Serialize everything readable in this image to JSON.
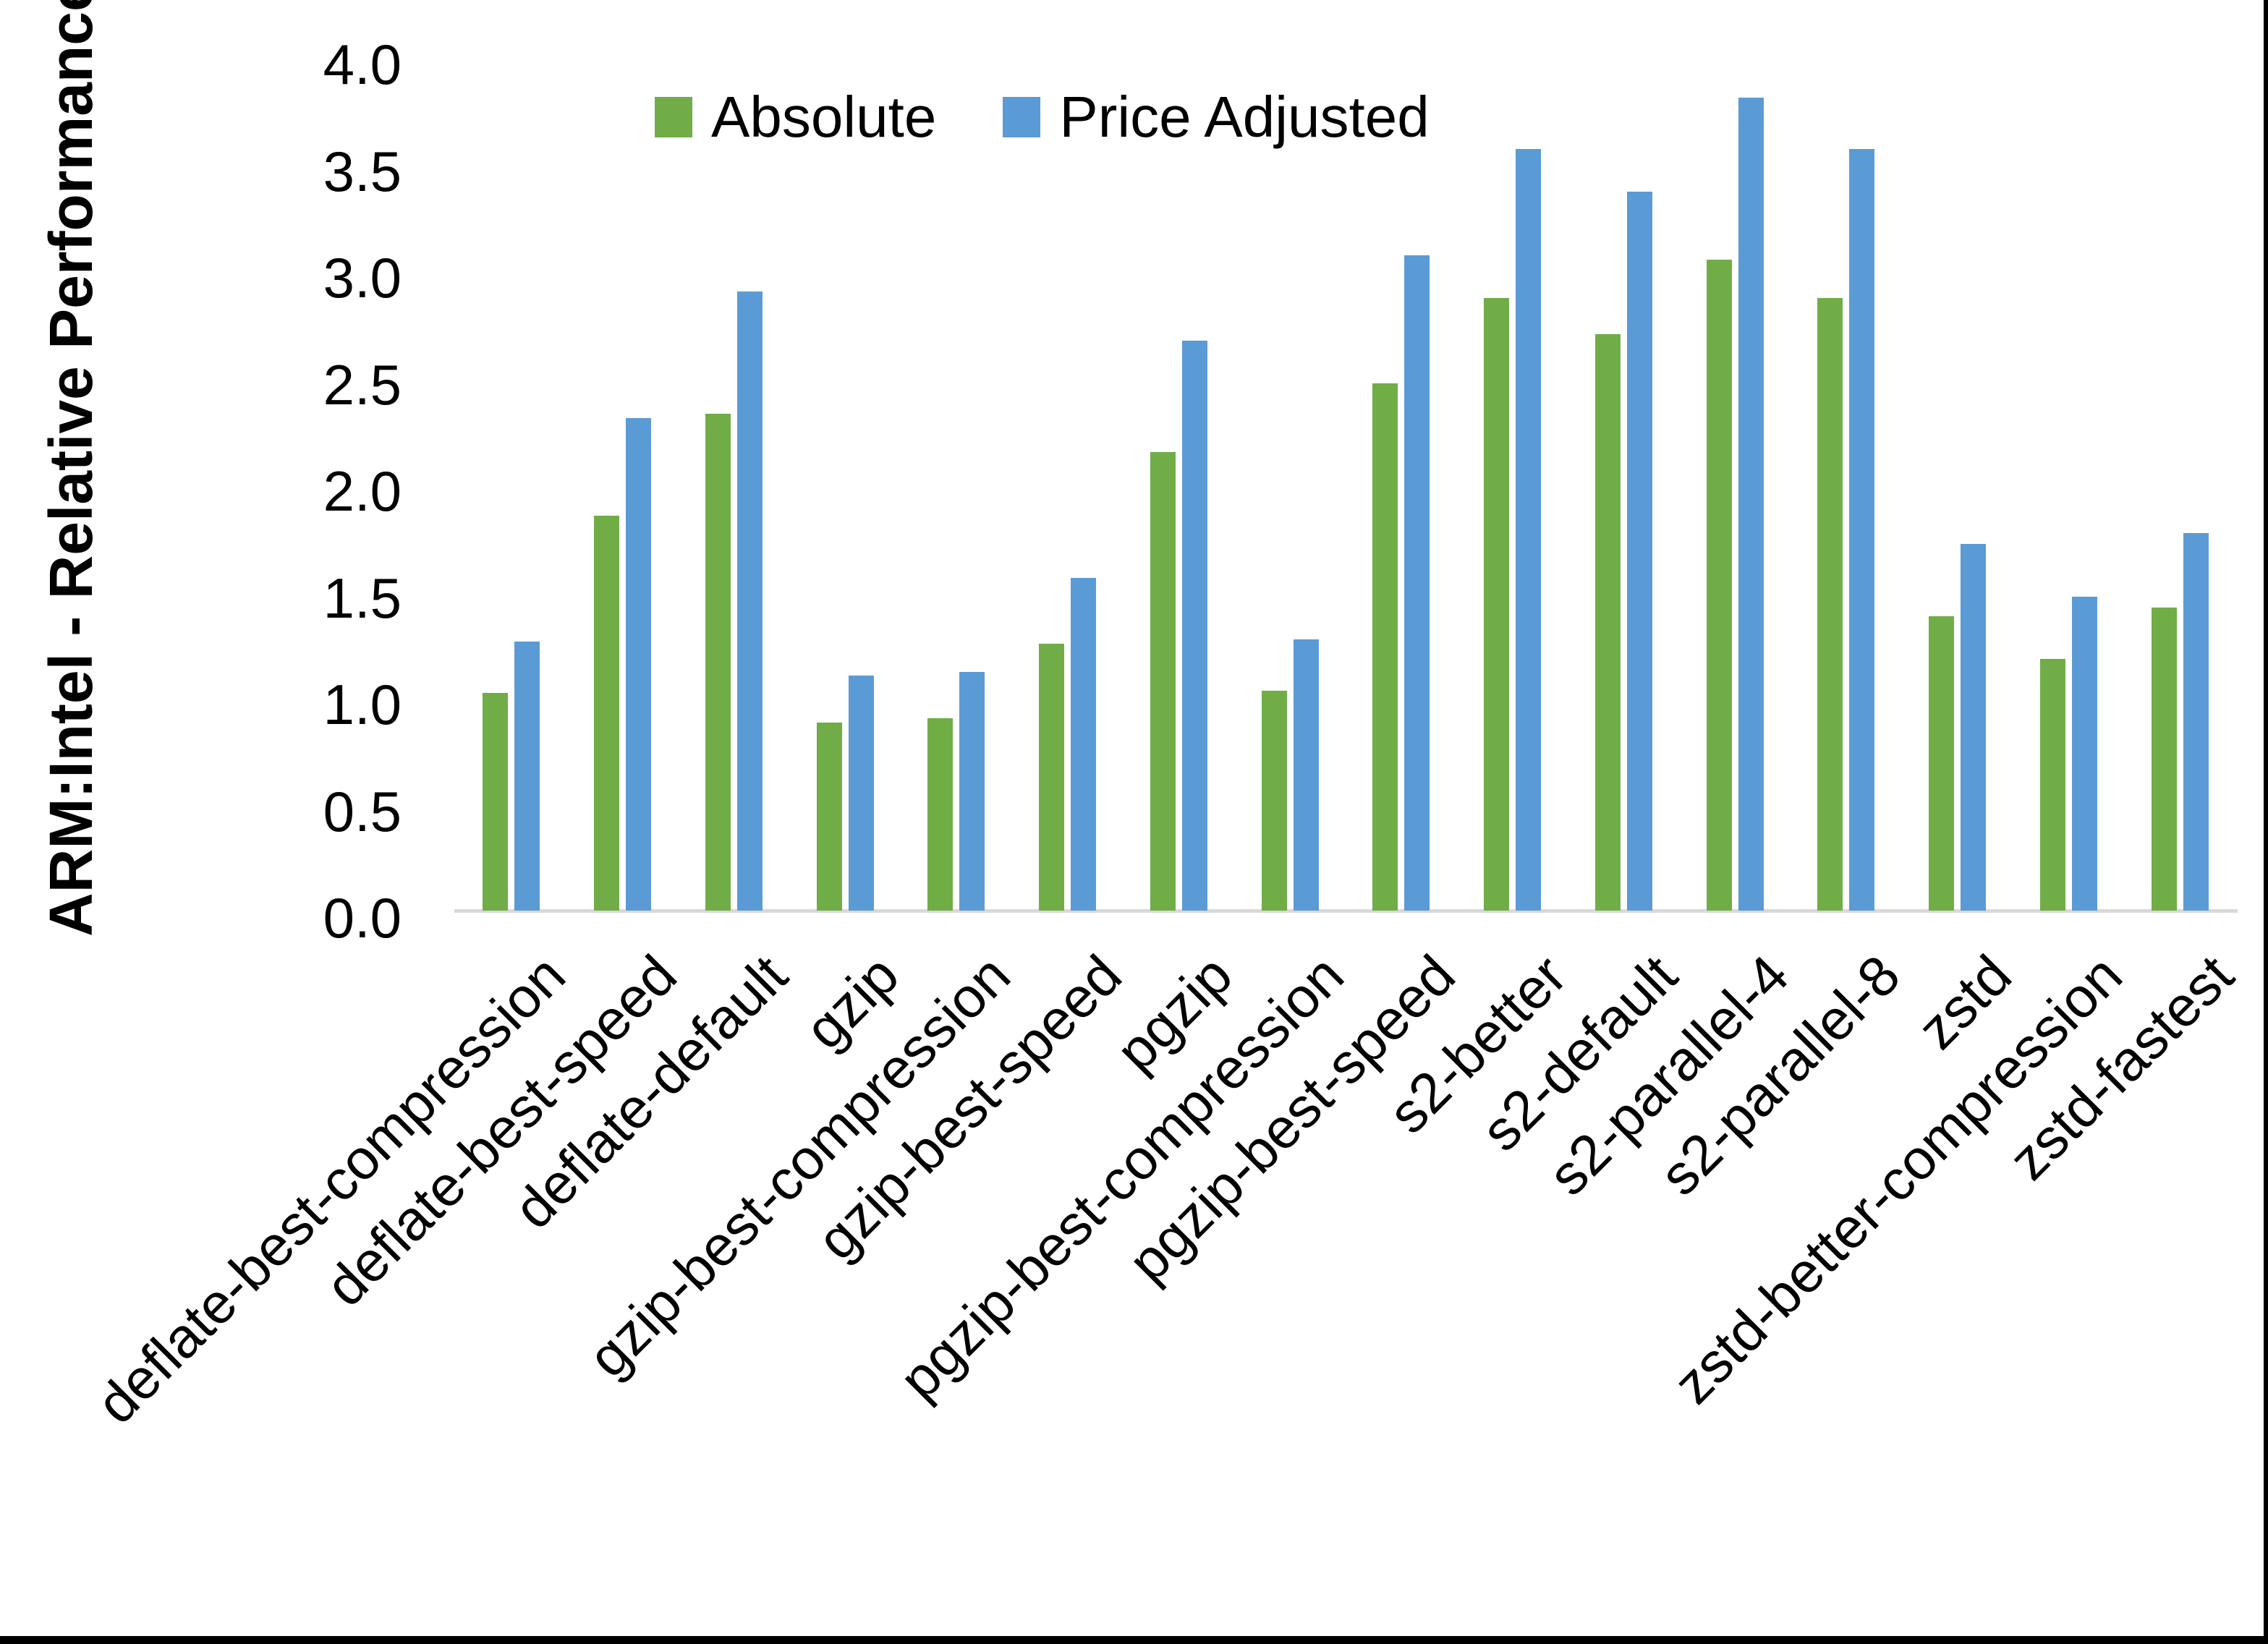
{
  "chart_data": {
    "type": "bar",
    "title": "",
    "xlabel": "",
    "ylabel": "ARM:Intel - Relative Performance",
    "ylim": [
      0.0,
      4.0
    ],
    "ytick_labels": [
      "0.0",
      "0.5",
      "1.0",
      "1.5",
      "2.0",
      "2.5",
      "3.0",
      "3.5",
      "4.0"
    ],
    "grid": false,
    "legend_position": "top-center",
    "categories": [
      "deflate-best-compression",
      "deflate-best-speed",
      "deflate-default",
      "gzip",
      "gzip-best-compression",
      "gzip-best-speed",
      "pgzip",
      "pgzip-best-compression",
      "pgzip-best-speed",
      "s2-better",
      "s2-default",
      "s2-parallel-4",
      "s2-parallel-8",
      "zstd",
      "zstd-better-compression",
      "zstd-fastest"
    ],
    "series": [
      {
        "name": "Absolute",
        "color": "#70AD47",
        "values": [
          1.02,
          1.85,
          2.33,
          0.88,
          0.9,
          1.25,
          2.15,
          1.03,
          2.47,
          2.87,
          2.7,
          3.05,
          2.87,
          1.38,
          1.18,
          1.42
        ]
      },
      {
        "name": "Price Adjusted",
        "color": "#5B9BD5",
        "values": [
          1.26,
          2.31,
          2.9,
          1.1,
          1.12,
          1.56,
          2.67,
          1.27,
          3.07,
          3.57,
          3.37,
          3.81,
          3.57,
          1.72,
          1.47,
          1.77
        ]
      }
    ],
    "colors": {
      "axis_line": "#D9D9D9",
      "text": "#000000",
      "background": "#FFFFFF",
      "frame": "#000000"
    }
  }
}
